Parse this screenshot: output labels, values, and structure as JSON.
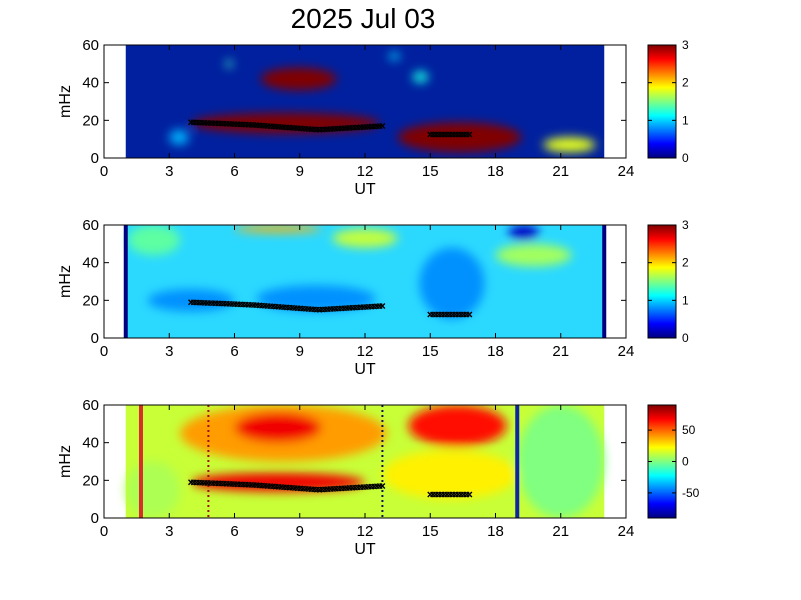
{
  "title": "2025 Jul 03",
  "chart_data": [
    {
      "type": "heatmap",
      "xlabel": "UT",
      "ylabel": "mHz",
      "xlim": [
        0,
        24
      ],
      "ylim": [
        0,
        60
      ],
      "xticks": [
        0,
        3,
        6,
        9,
        12,
        15,
        18,
        21,
        24
      ],
      "yticks": [
        0,
        20,
        40,
        60
      ],
      "data_x_range": [
        1.0,
        23.0
      ],
      "background_color": "#00209f",
      "blobs": [
        {
          "x": [
            7.2,
            10.7
          ],
          "y": [
            36,
            48
          ],
          "level": 3
        },
        {
          "x": [
            5.6,
            5.9
          ],
          "y": [
            48,
            52
          ],
          "level": 1.3
        },
        {
          "x": [
            4.0,
            12.7
          ],
          "y": [
            13,
            24
          ],
          "level": 3
        },
        {
          "x": [
            3.0,
            3.9
          ],
          "y": [
            7,
            15
          ],
          "level": 0.9
        },
        {
          "x": [
            13.5,
            19.2
          ],
          "y": [
            3,
            19
          ],
          "level": 3
        },
        {
          "x": [
            14.2,
            14.9
          ],
          "y": [
            40,
            46
          ],
          "level": 1.2
        },
        {
          "x": [
            20.2,
            22.6
          ],
          "y": [
            3,
            11
          ],
          "level": 1.8
        },
        {
          "x": [
            13.1,
            13.6
          ],
          "y": [
            52,
            56
          ],
          "level": 1.0
        }
      ],
      "tracks": [
        {
          "x_start": 4.0,
          "x_end": 12.8,
          "y": [
            19,
            17.5,
            15,
            17
          ],
          "color": "#000000"
        },
        {
          "x_start": 15.0,
          "x_end": 16.8,
          "y": [
            12.5,
            12.5
          ],
          "color": "#000000"
        }
      ],
      "colorbar": {
        "min": 0,
        "max": 3,
        "ticks": [
          0,
          1,
          2,
          3
        ],
        "colormap": "jet"
      }
    },
    {
      "type": "heatmap",
      "xlabel": "UT",
      "ylabel": "mHz",
      "xlim": [
        0,
        24
      ],
      "ylim": [
        0,
        60
      ],
      "xticks": [
        0,
        3,
        6,
        9,
        12,
        15,
        18,
        21,
        24
      ],
      "yticks": [
        0,
        20,
        40,
        60
      ],
      "data_x_range": [
        1.0,
        23.0
      ],
      "background_color": "#2bd9ff",
      "blobs": [
        {
          "x": [
            2.0,
            6.0
          ],
          "y": [
            14,
            26
          ],
          "level": 0.8
        },
        {
          "x": [
            7.0,
            12.5
          ],
          "y": [
            14,
            28
          ],
          "level": 0.8
        },
        {
          "x": [
            6.0,
            10.0
          ],
          "y": [
            56,
            60
          ],
          "level": 2.1
        },
        {
          "x": [
            14.5,
            17.5
          ],
          "y": [
            10,
            48
          ],
          "level": 0.8
        },
        {
          "x": [
            10.5,
            13.5
          ],
          "y": [
            48,
            58
          ],
          "level": 1.7
        },
        {
          "x": [
            18.0,
            21.5
          ],
          "y": [
            38,
            50
          ],
          "level": 1.6
        },
        {
          "x": [
            18.6,
            20.0
          ],
          "y": [
            52,
            60
          ],
          "level": 0.2
        },
        {
          "x": [
            1.1,
            3.5
          ],
          "y": [
            44,
            60
          ],
          "level": 1.4
        }
      ],
      "edge_lines": [
        {
          "x": 1.0,
          "color": "#000080"
        },
        {
          "x": 23.0,
          "color": "#000080"
        }
      ],
      "tracks": [
        {
          "x_start": 4.0,
          "x_end": 12.8,
          "y": [
            19,
            17.5,
            15,
            17
          ],
          "color": "#000000"
        },
        {
          "x_start": 15.0,
          "x_end": 16.8,
          "y": [
            12.5,
            12.5
          ],
          "color": "#000000"
        }
      ],
      "colorbar": {
        "min": 0,
        "max": 3,
        "ticks": [
          0,
          1,
          2,
          3
        ],
        "colormap": "jet"
      }
    },
    {
      "type": "heatmap",
      "xlabel": "UT",
      "ylabel": "mHz",
      "xlim": [
        0,
        24
      ],
      "ylim": [
        0,
        60
      ],
      "xticks": [
        0,
        3,
        6,
        9,
        12,
        15,
        18,
        21,
        24
      ],
      "yticks": [
        0,
        20,
        40,
        60
      ],
      "data_x_range": [
        1.0,
        23.0
      ],
      "background_color": "#c8ff37",
      "blobs": [
        {
          "x": [
            3.5,
            13.0
          ],
          "y": [
            30,
            60
          ],
          "level": 40
        },
        {
          "x": [
            6.0,
            10.0
          ],
          "y": [
            40,
            56
          ],
          "level": 70
        },
        {
          "x": [
            4.0,
            12.0
          ],
          "y": [
            14,
            24
          ],
          "level": 70
        },
        {
          "x": [
            14.0,
            18.5
          ],
          "y": [
            38,
            60
          ],
          "level": 65
        },
        {
          "x": [
            12.8,
            19.0
          ],
          "y": [
            10,
            36
          ],
          "level": 25
        },
        {
          "x": [
            19.0,
            23.0
          ],
          "y": [
            0,
            60
          ],
          "level": 0
        },
        {
          "x": [
            1.0,
            3.5
          ],
          "y": [
            0,
            30
          ],
          "level": 8
        }
      ],
      "vlines": [
        {
          "x": 1.7,
          "color": "#d72d2d",
          "style": "solid"
        },
        {
          "x": 4.8,
          "color": "#a01010",
          "style": "dotted"
        },
        {
          "x": 12.8,
          "color": "#101060",
          "style": "dotted"
        },
        {
          "x": 19.0,
          "color": "#1025a0",
          "style": "solid"
        }
      ],
      "tracks": [
        {
          "x_start": 4.0,
          "x_end": 12.8,
          "y": [
            19,
            17.5,
            15,
            17
          ],
          "color": "#000000"
        },
        {
          "x_start": 15.0,
          "x_end": 16.8,
          "y": [
            12.5,
            12.5
          ],
          "color": "#000000"
        }
      ],
      "colorbar": {
        "min": -90,
        "max": 90,
        "ticks": [
          -50,
          0,
          50
        ],
        "colormap": "jet"
      }
    }
  ]
}
